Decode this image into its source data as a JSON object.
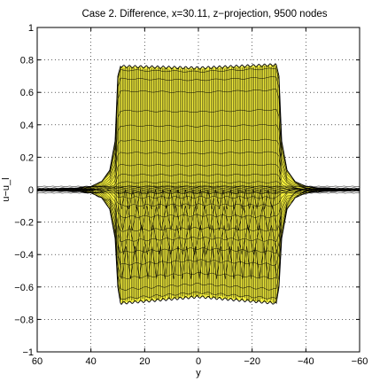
{
  "chart_data": {
    "type": "surface-projection",
    "title": "Case 2. Difference, x=30.11, z−projection, 9500 nodes",
    "xlabel": "y",
    "ylabel": "u−u_l",
    "xlim": [
      60,
      -60
    ],
    "ylim": [
      -1,
      1
    ],
    "x_reversed": true,
    "x_ticks": [
      60,
      40,
      20,
      0,
      -20,
      -40,
      -60
    ],
    "x_tick_labels": [
      "60",
      "40",
      "20",
      "0",
      "−20",
      "−40",
      "−60"
    ],
    "y_ticks": [
      1,
      0.8,
      0.6,
      0.4,
      0.2,
      0,
      -0.2,
      -0.4,
      -0.6,
      -0.8,
      -1
    ],
    "y_tick_labels": [
      "1",
      "0.8",
      "0.6",
      "0.4",
      "0.2",
      "0",
      "−0.2",
      "−0.4",
      "−0.6",
      "−0.8",
      "−1"
    ],
    "grid": "dotted",
    "face_color": "#f5f03c",
    "edge_color": "#000000",
    "upper_envelope": {
      "x": [
        60,
        45,
        40,
        36,
        33,
        31,
        30,
        29,
        0,
        -29,
        -30,
        -31,
        -33,
        -36,
        -40,
        -45,
        -60
      ],
      "y": [
        0.0,
        0.01,
        0.02,
        0.05,
        0.12,
        0.3,
        0.7,
        0.76,
        0.75,
        0.77,
        0.7,
        0.3,
        0.12,
        0.05,
        0.02,
        0.01,
        0.0
      ]
    },
    "lower_envelope": {
      "x": [
        60,
        45,
        40,
        36,
        33,
        31,
        30,
        29,
        0,
        -29,
        -30,
        -31,
        -33,
        -36,
        -40,
        -45,
        -60
      ],
      "y": [
        0.0,
        -0.01,
        -0.02,
        -0.05,
        -0.12,
        -0.3,
        -0.6,
        -0.7,
        -0.66,
        -0.7,
        -0.6,
        -0.3,
        -0.12,
        -0.05,
        -0.02,
        -0.01,
        0.0
      ]
    }
  }
}
